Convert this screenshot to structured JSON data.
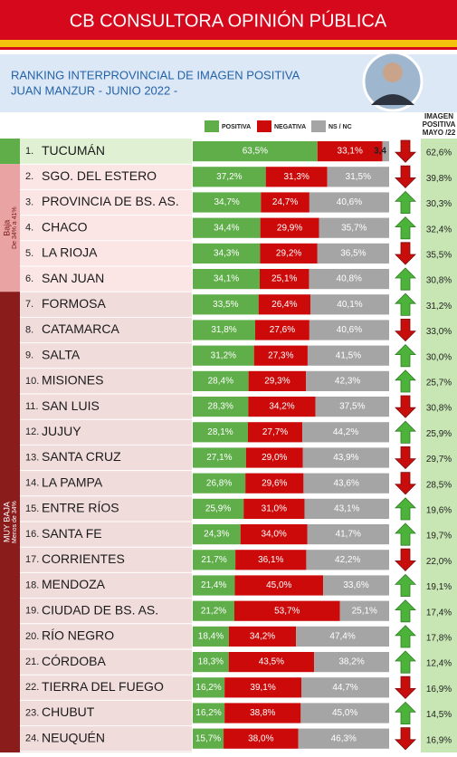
{
  "header": {
    "title": "CB CONSULTORA OPINIÓN PÚBLICA",
    "subtitle": [
      "RANKING INTERPROVINCIAL DE IMAGEN POSITIVA",
      "JUAN MANZUR  - JUNIO 2022 -"
    ]
  },
  "chart_data": {
    "type": "stacked-bar",
    "ranks": [
      "1.",
      "2.",
      "3.",
      "4.",
      "5.",
      "6.",
      "7.",
      "8.",
      "9.",
      "10.",
      "11.",
      "12.",
      "13.",
      "14.",
      "15.",
      "16.",
      "17.",
      "18.",
      "19.",
      "20.",
      "21.",
      "22.",
      "23.",
      "24."
    ],
    "categories": [
      "TUCUMÁN",
      "SGO. DEL ESTERO",
      "PROVINCIA DE BS. AS.",
      "CHACO",
      "LA RIOJA",
      "SAN JUAN",
      "FORMOSA",
      "CATAMARCA",
      "SALTA",
      "MISIONES",
      "SAN LUIS",
      "JUJUY",
      "SANTA CRUZ",
      "LA PAMPA",
      "ENTRE RÍOS",
      "SANTA FE",
      "CORRIENTES",
      "MENDOZA",
      "CIUDAD DE BS. AS.",
      "RÍO NEGRO",
      "CÓRDOBA",
      "TIERRA DEL FUEGO",
      "CHUBUT",
      "NEUQUÉN"
    ],
    "xlim": [
      0,
      100
    ],
    "series": [
      {
        "name": "POSITIVA",
        "color": "#5fae4a",
        "values": [
          63.5,
          37.2,
          34.7,
          34.4,
          34.3,
          34.1,
          33.5,
          31.8,
          31.2,
          28.4,
          28.3,
          28.1,
          27.1,
          26.8,
          25.9,
          24.3,
          21.7,
          21.4,
          21.2,
          18.4,
          18.3,
          16.2,
          16.2,
          15.7
        ],
        "value_labels": [
          "63,5%",
          "37,2%",
          "34,7%",
          "34,4%",
          "34,3%",
          "34,1%",
          "33,5%",
          "31,8%",
          "31,2%",
          "28,4%",
          "28,3%",
          "28,1%",
          "27,1%",
          "26,8%",
          "25,9%",
          "24,3%",
          "21,7%",
          "21,4%",
          "21,2%",
          "18,4%",
          "18,3%",
          "16,2%",
          "16,2%",
          "15,7%"
        ]
      },
      {
        "name": "NEGATIVA",
        "color": "#cc0a0a",
        "values": [
          33.1,
          31.3,
          24.7,
          29.9,
          29.2,
          25.1,
          26.4,
          27.6,
          27.3,
          29.3,
          34.2,
          27.7,
          29.0,
          29.6,
          31.0,
          34.0,
          36.1,
          45.0,
          53.7,
          34.2,
          43.5,
          39.1,
          38.8,
          38.0
        ],
        "value_labels": [
          "33,1%",
          "31,3%",
          "24,7%",
          "29,9%",
          "29,2%",
          "25,1%",
          "26,4%",
          "27,6%",
          "27,3%",
          "29,3%",
          "34,2%",
          "27,7%",
          "29,0%",
          "29,6%",
          "31,0%",
          "34,0%",
          "36,1%",
          "45,0%",
          "53,7%",
          "34,2%",
          "43,5%",
          "39,1%",
          "38,8%",
          "38,0%"
        ]
      },
      {
        "name": "NS / NC",
        "color": "#a5a5a5",
        "values": [
          3.4,
          31.5,
          40.6,
          35.7,
          36.5,
          40.8,
          40.1,
          40.6,
          41.5,
          42.3,
          37.5,
          44.2,
          43.9,
          43.6,
          43.1,
          41.7,
          42.2,
          33.6,
          25.1,
          47.4,
          38.2,
          44.7,
          45.0,
          46.3
        ],
        "value_labels": [
          "3,4",
          "31,5%",
          "40,6%",
          "35,7%",
          "36,5%",
          "40,8%",
          "40,1%",
          "40,6%",
          "41,5%",
          "42,3%",
          "37,5%",
          "44,2%",
          "43,9%",
          "43,6%",
          "43,1%",
          "41,7%",
          "42,2%",
          "33,6%",
          "25,1%",
          "47,4%",
          "38,2%",
          "44,7%",
          "45,0%",
          "46,3%"
        ]
      }
    ],
    "trend": [
      "down",
      "down",
      "up",
      "up",
      "down",
      "up",
      "up",
      "down",
      "up",
      "up",
      "down",
      "up",
      "down",
      "down",
      "up",
      "up",
      "down",
      "up",
      "up",
      "up",
      "up",
      "down",
      "up",
      "down"
    ],
    "may": {
      "title": [
        "IMAGEN",
        "POSITIVA",
        "MAYO /22"
      ],
      "color": "#c8e6b4",
      "values": [
        62.6,
        39.8,
        30.3,
        32.4,
        35.5,
        30.8,
        31.2,
        33.0,
        30.0,
        25.7,
        30.8,
        25.9,
        29.7,
        28.5,
        19.6,
        19.7,
        22.0,
        19.1,
        17.4,
        17.8,
        12.4,
        16.9,
        14.5,
        16.9
      ],
      "value_labels": [
        "62,6%",
        "39,8%",
        "30,3%",
        "32,4%",
        "35,5%",
        "30,8%",
        "31,2%",
        "33,0%",
        "30,0%",
        "25,7%",
        "30,8%",
        "25,9%",
        "29,7%",
        "28,5%",
        "19,6%",
        "19,7%",
        "22,0%",
        "19,1%",
        "17,4%",
        "17,8%",
        "12,4%",
        "16,9%",
        "14,5%",
        "16,9%"
      ]
    },
    "groups": [
      {
        "label": "Baja",
        "sublabel": "De 34% a 41%",
        "color": "#e9a3a3"
      },
      {
        "label": "MUY BAJA",
        "sublabel": "Menos de 34%",
        "color": "#8a1c1c"
      }
    ]
  }
}
